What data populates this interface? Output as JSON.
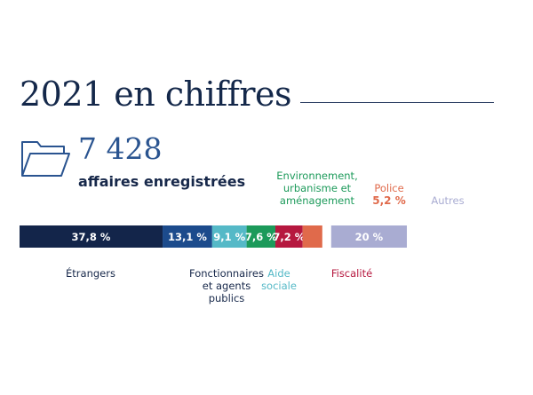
{
  "header": {
    "title": "2021 en chiffres"
  },
  "summary": {
    "icon": "folder-icon",
    "number": "7 428",
    "label": "affaires enregistrées"
  },
  "colors": {
    "title": "#14284a",
    "number": "#2a5490",
    "etrangers": "#13254a",
    "fonctionnaires": "#1c4b8c",
    "aide": "#55b9c7",
    "environnement": "#1c9a5a",
    "fiscalite": "#b6183f",
    "police": "#e06a4b",
    "autres": "#a9acd2"
  },
  "chart_data": {
    "type": "bar",
    "orientation": "horizontal-stacked",
    "unit": "%",
    "categories": [
      "Étrangers",
      "Fonctionnaires et agents publics",
      "Aide sociale",
      "Environnement, urbanisme et aménagement",
      "Fiscalité",
      "Police",
      "Autres"
    ],
    "values": [
      37.8,
      13.1,
      9.1,
      7.6,
      7.2,
      5.2,
      20
    ],
    "value_labels": [
      "37,8 %",
      "13,1 %",
      "9,1 %",
      "7,6 %",
      "7,2 %",
      "5,2 %",
      "20 %"
    ],
    "category_labels": {
      "etrangers": [
        "Étrangers"
      ],
      "fonctionnaires": [
        "Fonctionnaires",
        "et agents",
        "publics"
      ],
      "aide": [
        "Aide",
        "sociale"
      ],
      "environnement": [
        "Environnement,",
        "urbanisme et",
        "aménagement"
      ],
      "fiscalite": [
        "Fiscalité"
      ],
      "police": [
        "Police"
      ],
      "autres": [
        "Autres"
      ]
    }
  }
}
